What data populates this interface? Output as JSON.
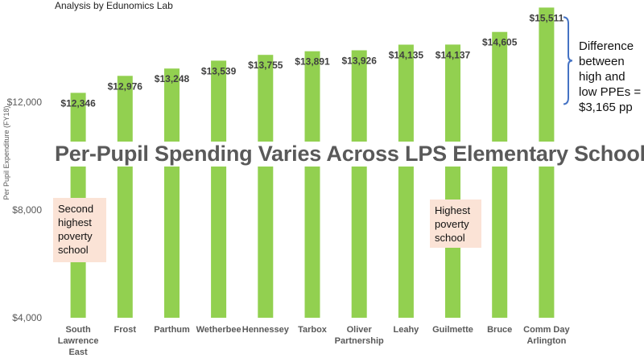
{
  "source_text": "Analysis by Edunomics Lab",
  "chart_data": {
    "type": "bar",
    "title": "Per-Pupil Spending Varies Across LPS Elementary Schools",
    "ylabel": "Per Pupil Expenditure (FY18)",
    "ylim": [
      4000,
      16000
    ],
    "yticks": [
      4000,
      8000,
      12000
    ],
    "ytick_labels": [
      "$4,000",
      "$8,000",
      "$12,000"
    ],
    "categories": [
      [
        "South",
        "Lawrence",
        "East"
      ],
      [
        "Frost"
      ],
      [
        "Parthum"
      ],
      [
        "Wetherbee"
      ],
      [
        "Hennessey"
      ],
      [
        "Tarbox"
      ],
      [
        "Oliver",
        "Partnership"
      ],
      [
        "Leahy"
      ],
      [
        "Guilmette"
      ],
      [
        "Bruce"
      ],
      [
        "Comm Day",
        "Arlington"
      ]
    ],
    "values": [
      12346,
      12976,
      13248,
      13539,
      13755,
      13891,
      13926,
      14135,
      14137,
      14605,
      15511
    ],
    "value_labels": [
      "$12,346",
      "$12,976",
      "$13,248",
      "$13,539",
      "$13,755",
      "$13,891",
      "$13,926",
      "$14,135",
      "$14,137",
      "$14,605",
      "$15,511"
    ],
    "bar_color": "#92d050",
    "grid": false,
    "annotations": {
      "difference": [
        "Difference",
        "between",
        "high and",
        "low PPEs =",
        "$3,165 pp"
      ],
      "second_highest_poverty": [
        "Second",
        "highest",
        "poverty",
        "school"
      ],
      "highest_poverty": [
        "Highest",
        "poverty",
        "school"
      ]
    },
    "colors": {
      "note_fill": "#fbe3d6",
      "bracket": "#4472c4",
      "title": "#595959",
      "axis_text": "#595959"
    }
  }
}
